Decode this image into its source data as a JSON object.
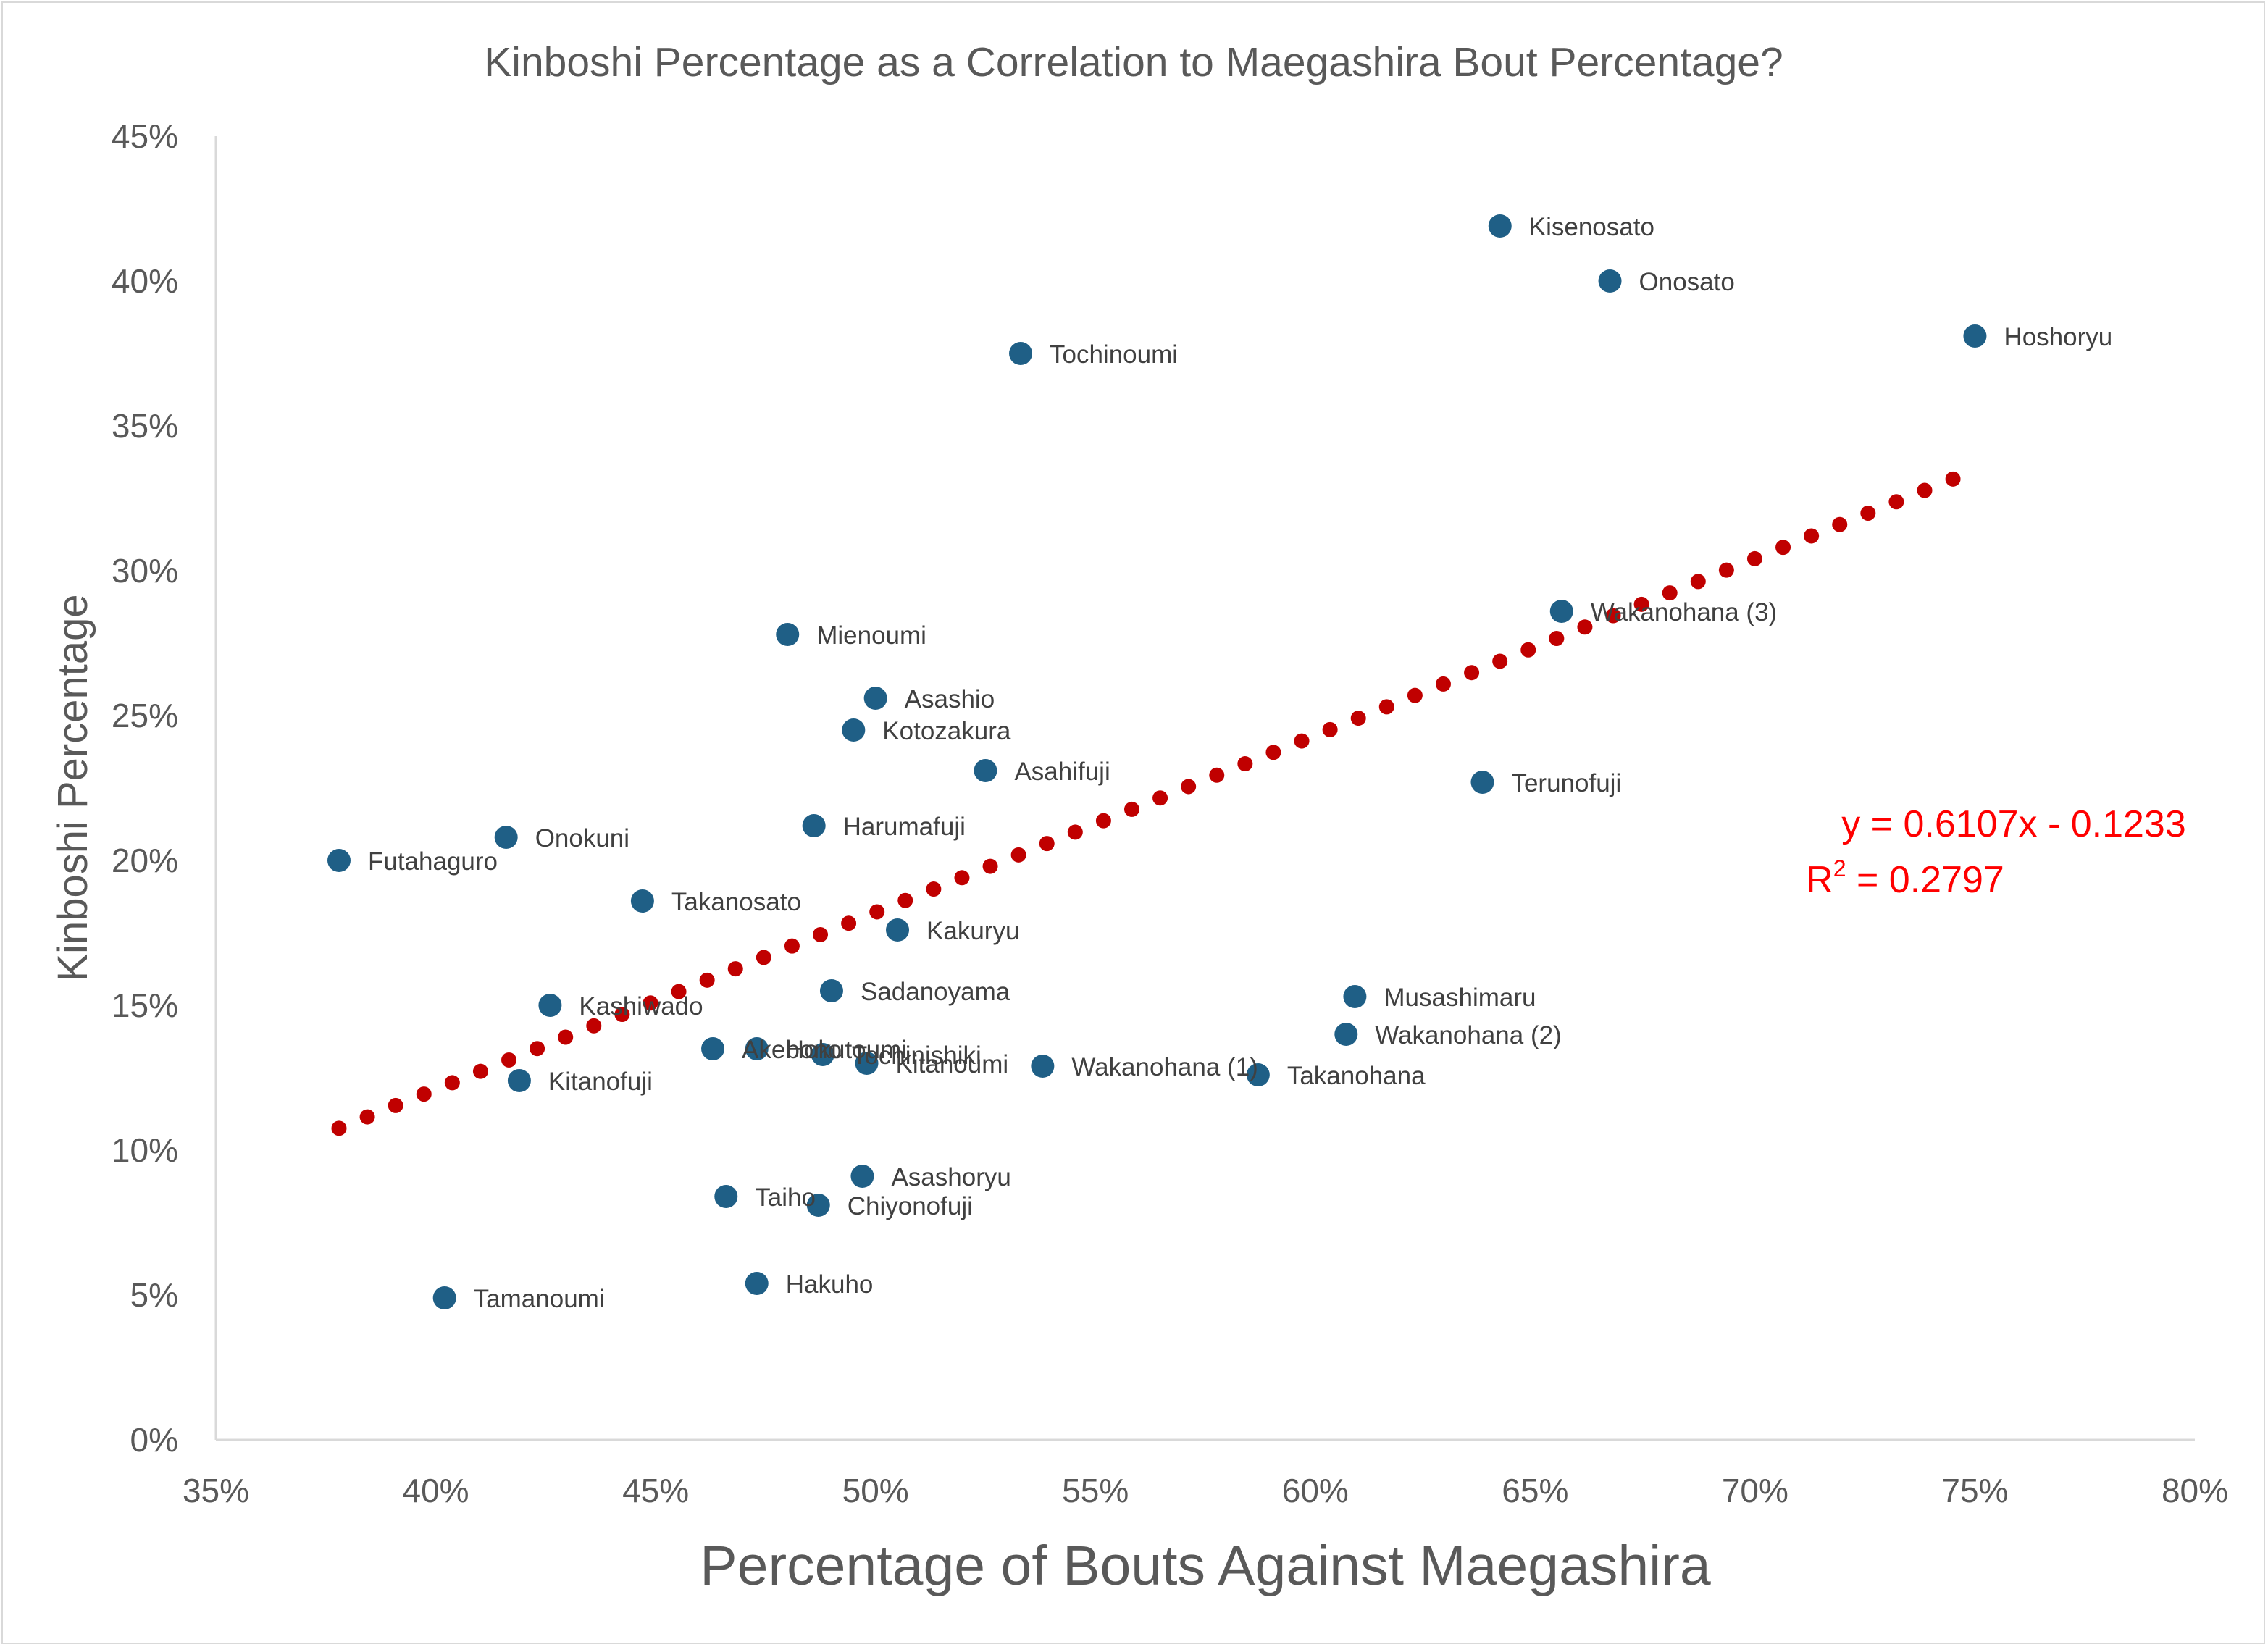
{
  "chart_data": {
    "type": "scatter",
    "title": "Kinboshi Percentage as a Correlation to Maegashira Bout Percentage?",
    "xlabel": "Percentage of Bouts Against Maegashira",
    "ylabel": "Kinboshi Percentage",
    "xlim": [
      0.35,
      0.8
    ],
    "ylim": [
      0,
      0.45
    ],
    "x_ticks": [
      "35%",
      "40%",
      "45%",
      "50%",
      "55%",
      "60%",
      "65%",
      "70%",
      "75%",
      "80%"
    ],
    "y_ticks": [
      "0%",
      "5%",
      "10%",
      "15%",
      "20%",
      "25%",
      "30%",
      "35%",
      "40%",
      "45%"
    ],
    "grid": false,
    "marker_color": "#1f5f86",
    "trendline_color": "#c00000",
    "points": [
      {
        "name": "Kisenosato",
        "x": 0.642,
        "y": 0.419
      },
      {
        "name": "Onosato",
        "x": 0.667,
        "y": 0.4
      },
      {
        "name": "Hoshoryu",
        "x": 0.75,
        "y": 0.381
      },
      {
        "name": "Tochinoumi",
        "x": 0.533,
        "y": 0.375
      },
      {
        "name": "Wakanohana (3)",
        "x": 0.656,
        "y": 0.286
      },
      {
        "name": "Mienoumi",
        "x": 0.48,
        "y": 0.278
      },
      {
        "name": "Asashio",
        "x": 0.5,
        "y": 0.256
      },
      {
        "name": "Kotozakura",
        "x": 0.495,
        "y": 0.245
      },
      {
        "name": "Asahifuji",
        "x": 0.525,
        "y": 0.231
      },
      {
        "name": "Terunofuji",
        "x": 0.638,
        "y": 0.227
      },
      {
        "name": "Harumafuji",
        "x": 0.486,
        "y": 0.212
      },
      {
        "name": "Onokuni",
        "x": 0.416,
        "y": 0.208
      },
      {
        "name": "Futahaguro",
        "x": 0.378,
        "y": 0.2
      },
      {
        "name": "Takanosato",
        "x": 0.447,
        "y": 0.186
      },
      {
        "name": "Kakuryu",
        "x": 0.505,
        "y": 0.176
      },
      {
        "name": "Sadanoyama",
        "x": 0.49,
        "y": 0.155
      },
      {
        "name": "Kashiwado",
        "x": 0.426,
        "y": 0.15
      },
      {
        "name": "Musashimaru",
        "x": 0.609,
        "y": 0.153
      },
      {
        "name": "Wakanohana (2)",
        "x": 0.607,
        "y": 0.14
      },
      {
        "name": "Akebono",
        "x": 0.463,
        "y": 0.135
      },
      {
        "name": "Hokutoumi",
        "x": 0.473,
        "y": 0.135
      },
      {
        "name": "Tochinishiki",
        "x": 0.488,
        "y": 0.133
      },
      {
        "name": "Kitanoumi",
        "x": 0.498,
        "y": 0.13
      },
      {
        "name": "Wakanohana (1)",
        "x": 0.538,
        "y": 0.129
      },
      {
        "name": "Takanohana",
        "x": 0.587,
        "y": 0.126
      },
      {
        "name": "Kitanofuji",
        "x": 0.419,
        "y": 0.124
      },
      {
        "name": "Asashoryu",
        "x": 0.497,
        "y": 0.091
      },
      {
        "name": "Taiho",
        "x": 0.466,
        "y": 0.084
      },
      {
        "name": "Chiyonofuji",
        "x": 0.487,
        "y": 0.081
      },
      {
        "name": "Hakuho",
        "x": 0.473,
        "y": 0.054
      },
      {
        "name": "Tamanoumi",
        "x": 0.402,
        "y": 0.049
      }
    ],
    "trendline": {
      "type": "linear",
      "slope": 0.6107,
      "intercept": -0.1233,
      "x_range": [
        0.378,
        0.745
      ],
      "equation": "y = 0.6107x - 0.1233",
      "r2_prefix": "R",
      "r2_superscript": "2",
      "r2_value": " = 0.2797"
    }
  }
}
